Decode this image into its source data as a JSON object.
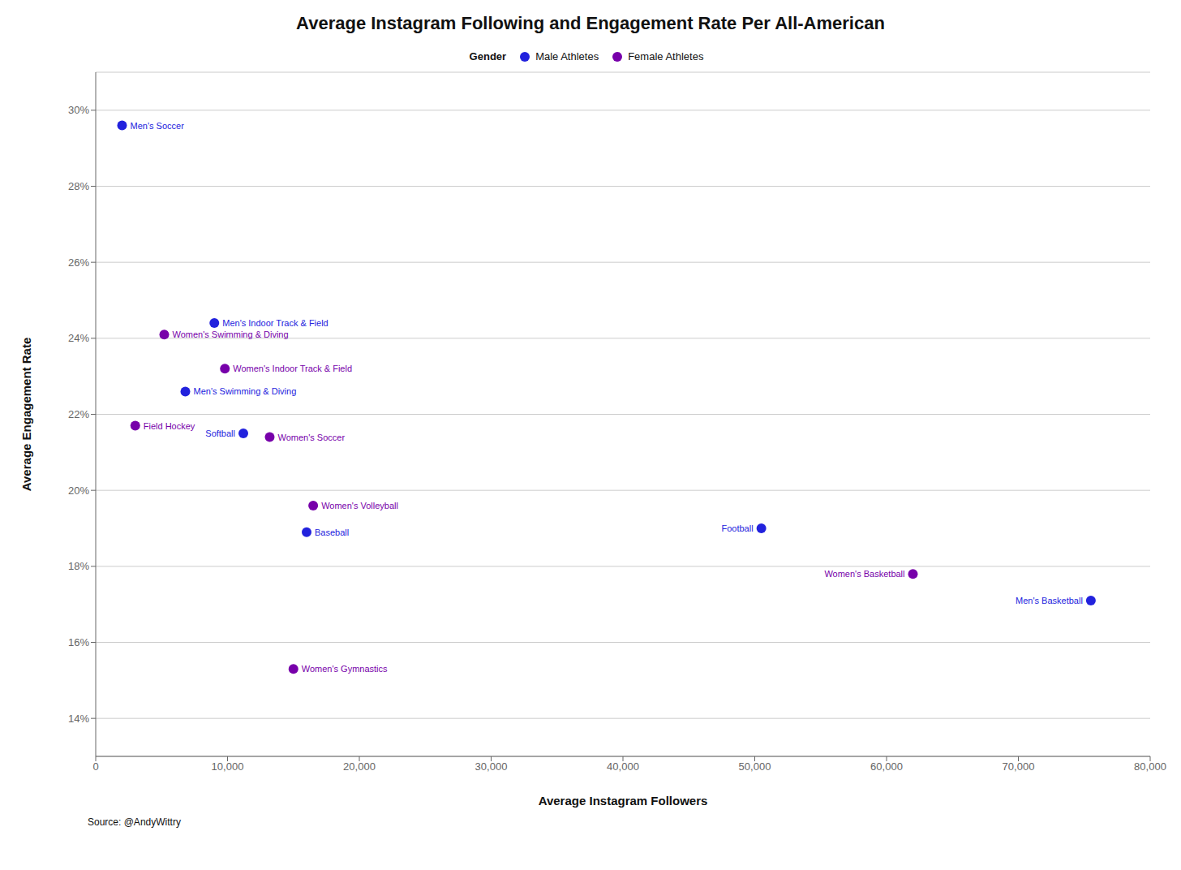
{
  "chart_data": {
    "type": "scatter",
    "title": "Average Instagram Following and Engagement Rate Per All-American",
    "x_label": "Average Instagram Followers",
    "y_label": "Average Engagement Rate",
    "source": "Source: @AndyWittry",
    "legend_title": "Gender",
    "legend": "top",
    "grid": true,
    "marker": "circle",
    "xlim": [
      0,
      80000
    ],
    "ylim": [
      0.13,
      0.31
    ],
    "xticks": [
      0,
      {
        "value": 10000,
        "label": "10,000"
      },
      {
        "value": 20000,
        "label": "20,000"
      },
      {
        "value": 30000,
        "label": "30,000"
      },
      {
        "value": 40000,
        "label": "40,000"
      },
      {
        "value": 50000,
        "label": "50,000"
      },
      {
        "value": 60000,
        "label": "60,000"
      },
      {
        "value": 70000,
        "label": "70,000"
      },
      {
        "value": 80000,
        "label": "80,000"
      }
    ],
    "yticks": [
      {
        "value": 0.14,
        "label": "14%"
      },
      {
        "value": 0.16,
        "label": "16%"
      },
      {
        "value": 0.18,
        "label": "18%"
      },
      {
        "value": 0.2,
        "label": "20%"
      },
      {
        "value": 0.22,
        "label": "22%"
      },
      {
        "value": 0.24,
        "label": "24%"
      },
      {
        "value": 0.26,
        "label": "26%"
      },
      {
        "value": 0.28,
        "label": "28%"
      },
      {
        "value": 0.3,
        "label": "30%"
      }
    ],
    "series": [
      {
        "name": "Male Athletes",
        "color": "#2222DD",
        "labels": [
          "Men's Soccer",
          "Men's Indoor Track & Field",
          "Men's Swimming & Diving",
          "Softball",
          "Baseball",
          "Football",
          "Men's Basketball"
        ],
        "x": [
          2000,
          9000,
          6800,
          11200,
          16000,
          50500,
          75500
        ],
        "y": [
          0.296,
          0.244,
          0.226,
          0.215,
          0.189,
          0.19,
          0.171
        ]
      },
      {
        "name": "Female Athletes",
        "color": "#7700AA",
        "labels": [
          "Women's Swimming & Diving",
          "Women's Indoor Track & Field",
          "Field Hockey",
          "Women's Soccer",
          "Women's Volleyball",
          "Women's Basketball",
          "Women's Gymnastics"
        ],
        "x": [
          5200,
          9800,
          3000,
          13200,
          16500,
          62000,
          15000
        ],
        "y": [
          0.241,
          0.232,
          0.217,
          0.214,
          0.196,
          0.178,
          0.153
        ]
      }
    ]
  }
}
